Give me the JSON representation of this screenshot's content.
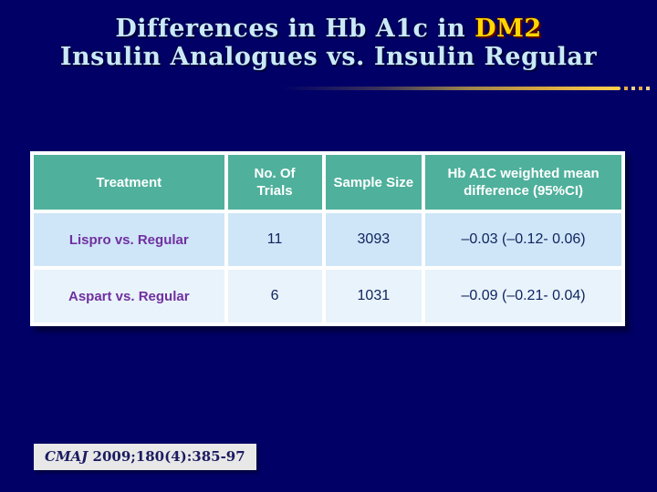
{
  "slide": {
    "background_color": "#000066"
  },
  "title": {
    "line1_prefix": "Differences in Hb A1c in ",
    "line1_highlight": "DM2",
    "line2": "Insulin Analogues vs. Insulin Regular",
    "text_color": "#c9e9f9",
    "highlight_color": "#ffd700"
  },
  "divider": {
    "color": "#ffd24f",
    "dot_count": 4
  },
  "table": {
    "header_bg": "#4fb09c",
    "row_colors": [
      "#cfe6f8",
      "#e9f3fb"
    ],
    "treatment_text_color": "#7030a0",
    "value_text_color": "#102560",
    "columns": [
      "Treatment",
      "No. Of Trials",
      "Sample Size",
      "Hb A1C weighted mean difference (95%CI)"
    ],
    "rows": [
      {
        "treatment": "Lispro vs. Regular",
        "trials": "11",
        "sample_size": "3093",
        "difference": "–0.03 (–0.12- 0.06)"
      },
      {
        "treatment": "Aspart vs. Regular",
        "trials": "6",
        "sample_size": "1031",
        "difference": "–0.09 (–0.21- 0.04)"
      }
    ]
  },
  "chart_data": {
    "type": "table",
    "title": "Differences in Hb A1c in DM2: Insulin Analogues vs. Insulin Regular",
    "columns": [
      "Treatment",
      "No. Of Trials",
      "Sample Size",
      "Hb A1C weighted mean difference (95%CI)"
    ],
    "rows": [
      [
        "Lispro vs. Regular",
        11,
        3093,
        "–0.03 (–0.12- 0.06)"
      ],
      [
        "Aspart vs. Regular",
        6,
        1031,
        "–0.09 (–0.21- 0.04)"
      ]
    ]
  },
  "citation": {
    "journal": "CMAJ",
    "reference": " 2009;180(4):385-97"
  }
}
